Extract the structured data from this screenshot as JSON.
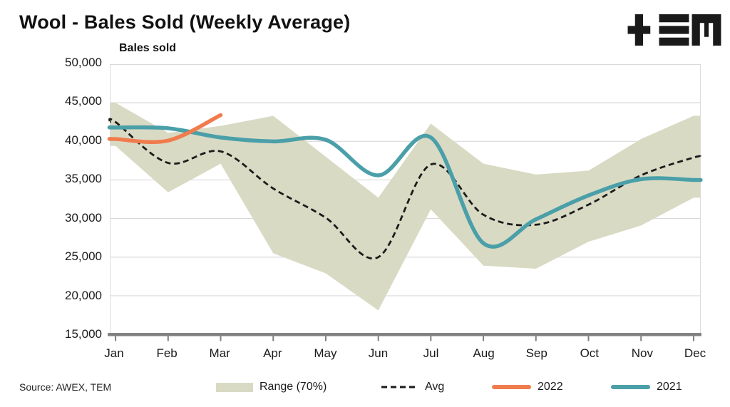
{
  "title": "Wool - Bales Sold (Weekly Average)",
  "axis_title": "Bales sold",
  "source": "Source: AWEX, TEM",
  "logo": {
    "name": "TEM logo (plus, triple-bar, M glyphs)",
    "color": "#1a1a1a"
  },
  "colors": {
    "band": "#D9DAC4",
    "avg": "#1b1b1b",
    "y2022": "#F07C4D",
    "y2021": "#4A9FA8",
    "grid": "#D9D9D9",
    "plot_border": "#D9D9D9",
    "axis": "#7F7F7F",
    "text": "#1a1a1a"
  },
  "chart_data": {
    "type": "line",
    "title": "Wool - Bales Sold (Weekly Average)",
    "ylabel": "Bales sold",
    "xlabel": "",
    "grid": "horizontal",
    "legend_position": "bottom",
    "categories": [
      "Jan",
      "Feb",
      "Mar",
      "Apr",
      "May",
      "Jun",
      "Jul",
      "Aug",
      "Sep",
      "Oct",
      "Nov",
      "Dec"
    ],
    "y_axis": {
      "min": 15000,
      "max": 50000,
      "step": 5000,
      "ticks": [
        {
          "value": 50000,
          "label": "50,000"
        },
        {
          "value": 45000,
          "label": "45,000"
        },
        {
          "value": 40000,
          "label": "40,000"
        },
        {
          "value": 35000,
          "label": "35,000"
        },
        {
          "value": 30000,
          "label": "30,000"
        },
        {
          "value": 25000,
          "label": "25,000"
        },
        {
          "value": 20000,
          "label": "20,000"
        },
        {
          "value": 15000,
          "label": "15,000"
        }
      ]
    },
    "series": [
      {
        "name": "Range (70%)",
        "type": "band",
        "color": "#D9DAC4",
        "upper": [
          45000,
          41100,
          42000,
          43300,
          38000,
          32700,
          42300,
          37100,
          35700,
          36200,
          40300,
          43300
        ],
        "lower": [
          39400,
          33400,
          37100,
          25500,
          22900,
          18100,
          31200,
          23900,
          23500,
          27000,
          29100,
          32700
        ]
      },
      {
        "name": "Avg",
        "type": "dashed-line",
        "color": "#1b1b1b",
        "stroke_width": 2.8,
        "values": [
          42500,
          37200,
          38700,
          33900,
          30100,
          25000,
          37000,
          30500,
          29200,
          31800,
          35600,
          37900
        ]
      },
      {
        "name": "2022",
        "type": "line",
        "color": "#F07C4D",
        "stroke_width": 5.5,
        "values": [
          40300,
          40100,
          43400,
          null,
          null,
          null,
          null,
          null,
          null,
          null,
          null,
          null
        ]
      },
      {
        "name": "2021",
        "type": "line",
        "color": "#4A9FA8",
        "stroke_width": 5.5,
        "values": [
          41800,
          41700,
          40500,
          40000,
          40200,
          35600,
          40500,
          26800,
          29900,
          33000,
          35100,
          35000
        ]
      }
    ]
  }
}
